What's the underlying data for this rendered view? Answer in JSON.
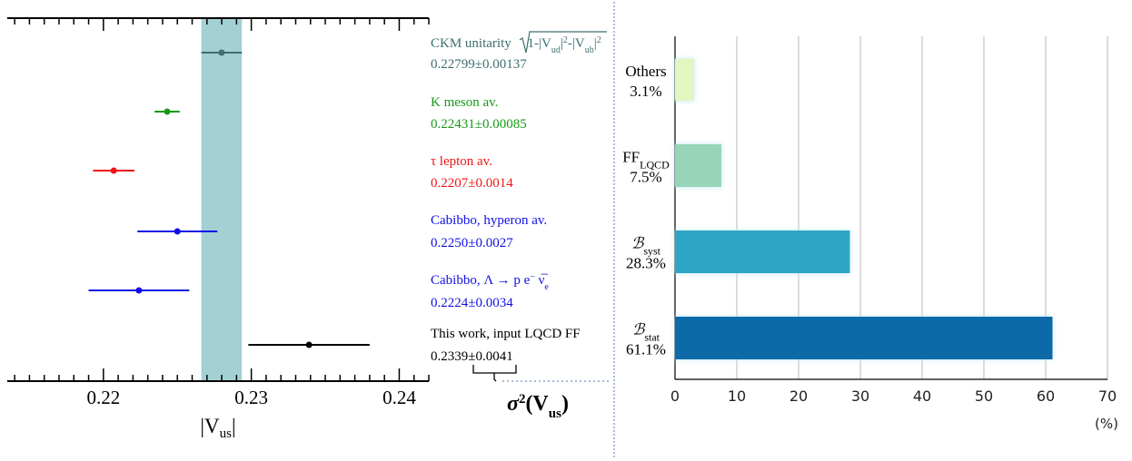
{
  "colors": {
    "band": "#a3d0d2",
    "teal": "#3e6e6e",
    "green": "#179a17",
    "red": "#f01414",
    "blue": "#1010e6",
    "black": "#000000",
    "divider": "#a9bcd8",
    "grid": "#b8b8b8",
    "glow": "#bfe6f4"
  },
  "chart_data": [
    {
      "type": "scatter",
      "xlabel": "|V",
      "xlabel_sub": "us",
      "xlabel_suffix": "|",
      "xlim": [
        0.2135,
        0.242
      ],
      "x_ticks": [
        0.22,
        0.23,
        0.24
      ],
      "x_tick_labels": [
        "0.22",
        "0.23",
        "0.24"
      ],
      "band": {
        "low": 0.22662,
        "high": 0.22936
      },
      "points": [
        {
          "value": 0.22799,
          "err": 0.00137,
          "color": "#3e6e6e",
          "label_parts": [
            {
              "text": "CKM unitarity "
            },
            {
              "text": "1-|V",
              "sqrt": true
            },
            {
              "text": "ud",
              "sub": true,
              "sqrt": true
            },
            {
              "text": "|",
              "sqrt": true
            },
            {
              "text": "2",
              "sup": true,
              "sqrt": true
            },
            {
              "text": "-|V",
              "sqrt": true
            },
            {
              "text": "ub",
              "sub": true,
              "sqrt": true
            },
            {
              "text": "|",
              "sqrt": true
            },
            {
              "text": "2",
              "sup": true,
              "sqrt": true
            }
          ],
          "value_text": "0.22799±0.00137"
        },
        {
          "value": 0.22431,
          "err": 0.00085,
          "color": "#179a17",
          "label_parts": [
            {
              "text": "K meson av."
            }
          ],
          "value_text": "0.22431±0.00085"
        },
        {
          "value": 0.2207,
          "err": 0.0014,
          "color": "#f01414",
          "label_parts": [
            {
              "text": "τ lepton av."
            }
          ],
          "value_text": "0.2207±0.0014"
        },
        {
          "value": 0.225,
          "err": 0.0027,
          "color": "#1010e6",
          "label_parts": [
            {
              "text": "Cabibbo, hyperon av."
            }
          ],
          "value_text": "0.2250±0.0027"
        },
        {
          "value": 0.2224,
          "err": 0.0034,
          "color": "#1010e6",
          "label_parts": [
            {
              "text": "Cabibbo, Λ  → p e"
            },
            {
              "text": "−",
              "sup": true
            },
            {
              "text": "  ν̅"
            },
            {
              "text": "e",
              "sub": true
            }
          ],
          "value_text": "0.2224±0.0034"
        },
        {
          "value": 0.2339,
          "err": 0.0041,
          "color": "#000000",
          "label_parts": [
            {
              "text": "This work, input LQCD FF"
            }
          ],
          "value_text": "0.2339±0.0041"
        }
      ],
      "bracket_label": "σ",
      "bracket_label_sup": "2",
      "bracket_label_rest": "(V",
      "bracket_label_sub": "us",
      "bracket_label_end": ")"
    },
    {
      "type": "bar",
      "orientation": "horizontal",
      "categories": [
        "Others",
        "FF_LQCD",
        "B_syst",
        "B_stat"
      ],
      "category_labels": [
        {
          "main": "Others",
          "sub": ""
        },
        {
          "main": "FF",
          "sub": "LQCD"
        },
        {
          "main": "ℬ",
          "sub": "syst"
        },
        {
          "main": "ℬ",
          "sub": "stat"
        }
      ],
      "values": [
        3.1,
        7.5,
        28.3,
        61.1
      ],
      "value_labels": [
        "3.1%",
        "7.5%",
        "28.3%",
        "61.1%"
      ],
      "colors": [
        "#e2f6bf",
        "#96d5b9",
        "#2fa5c4",
        "#0a6aa8"
      ],
      "xlim": [
        0,
        70
      ],
      "x_ticks": [
        0,
        10,
        20,
        30,
        40,
        50,
        60,
        70
      ],
      "x_tick_labels": [
        "0",
        "10",
        "20",
        "30",
        "40",
        "50",
        "60",
        "70"
      ],
      "unit": "(%)",
      "grid": true
    }
  ]
}
